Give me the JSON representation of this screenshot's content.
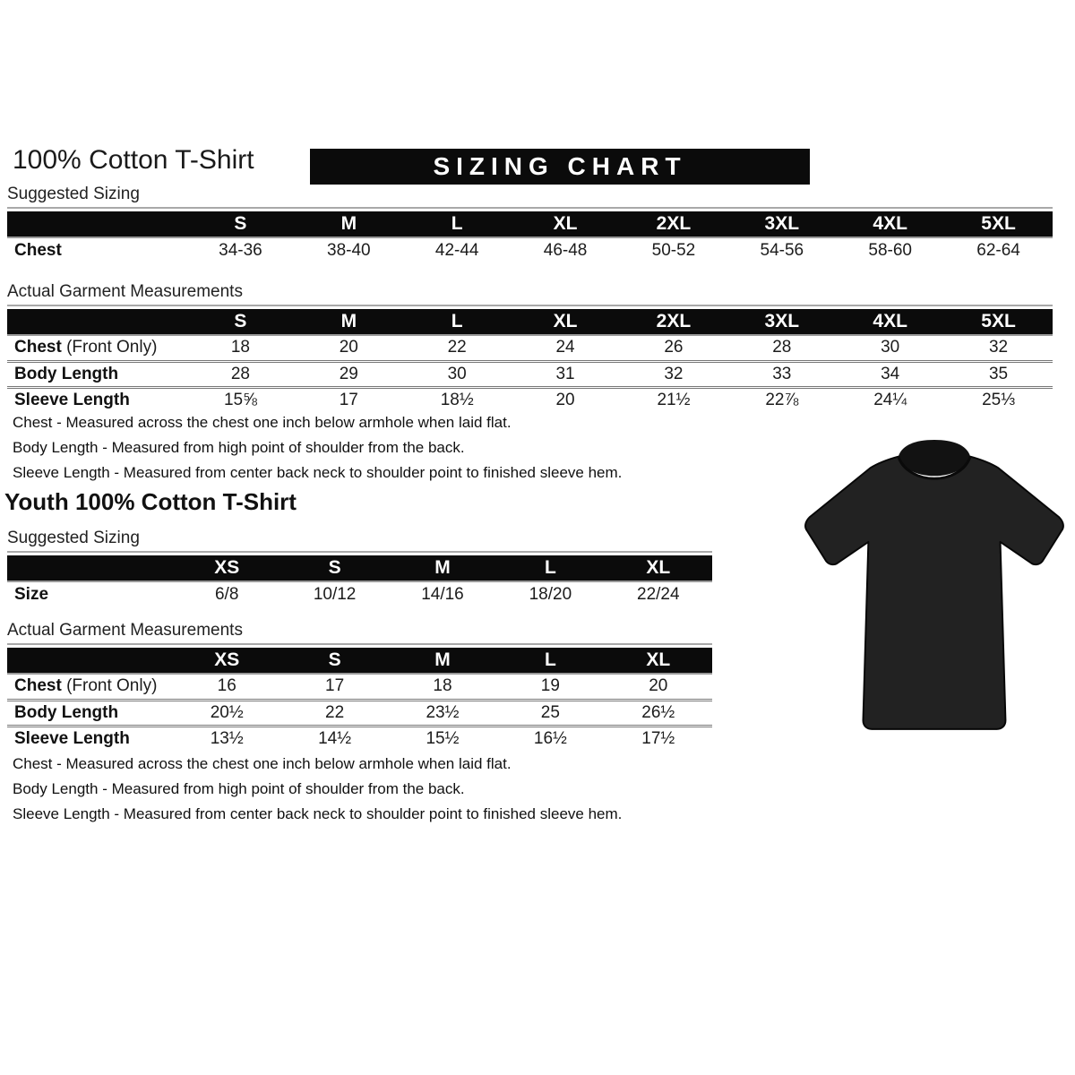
{
  "header": {
    "title": "100% Cotton T-Shirt",
    "banner": "SIZING CHART"
  },
  "adult": {
    "suggested_label": "Suggested Sizing",
    "suggested_table": {
      "columns": [
        "S",
        "M",
        "L",
        "XL",
        "2XL",
        "3XL",
        "4XL",
        "5XL"
      ],
      "rows": [
        {
          "label": "Chest",
          "suffix": "",
          "values": [
            "34-36",
            "38-40",
            "42-44",
            "46-48",
            "50-52",
            "54-56",
            "58-60",
            "62-64"
          ]
        }
      ]
    },
    "actual_label": "Actual Garment Measurements",
    "actual_table": {
      "columns": [
        "S",
        "M",
        "L",
        "XL",
        "2XL",
        "3XL",
        "4XL",
        "5XL"
      ],
      "rows": [
        {
          "label": "Chest",
          "suffix": " (Front Only)",
          "values": [
            "18",
            "20",
            "22",
            "24",
            "26",
            "28",
            "30",
            "32"
          ]
        },
        {
          "label": "Body Length",
          "suffix": "",
          "values": [
            "28",
            "29",
            "30",
            "31",
            "32",
            "33",
            "34",
            "35"
          ]
        },
        {
          "label": "Sleeve Length",
          "suffix": "",
          "values": [
            "15⅝",
            "17",
            "18½",
            "20",
            "21½",
            "22⅞",
            "24¼",
            "25⅓"
          ]
        }
      ]
    },
    "notes": [
      "Chest - Measured across the chest one inch below armhole when laid flat.",
      "Body Length - Measured from high point of shoulder from the back.",
      "Sleeve Length - Measured from center back neck to shoulder point to finished sleeve hem."
    ]
  },
  "youth": {
    "title": "Youth 100% Cotton T-Shirt",
    "suggested_label": "Suggested Sizing",
    "suggested_table": {
      "columns": [
        "XS",
        "S",
        "M",
        "L",
        "XL"
      ],
      "rows": [
        {
          "label": "Size",
          "suffix": "",
          "values": [
            "6/8",
            "10/12",
            "14/16",
            "18/20",
            "22/24"
          ]
        }
      ]
    },
    "actual_label": "Actual Garment Measurements",
    "actual_table": {
      "columns": [
        "XS",
        "S",
        "M",
        "L",
        "XL"
      ],
      "rows": [
        {
          "label": "Chest",
          "suffix": " (Front Only)",
          "values": [
            "16",
            "17",
            "18",
            "19",
            "20"
          ]
        },
        {
          "label": "Body Length",
          "suffix": "",
          "values": [
            "20½",
            "22",
            "23½",
            "25",
            "26½"
          ]
        },
        {
          "label": "Sleeve Length",
          "suffix": "",
          "values": [
            "13½",
            "14½",
            "15½",
            "16½",
            "17½"
          ]
        }
      ]
    },
    "notes": [
      "Chest - Measured across the chest one inch below armhole when laid flat.",
      "Body Length - Measured from high point of shoulder from the back.",
      "Sleeve Length - Measured from center back neck to shoulder point to finished sleeve hem."
    ]
  },
  "product_image": {
    "shirt_color": "#222222",
    "collar_color": "#121212",
    "outline_color": "#070707"
  },
  "colors": {
    "table_header_bg": "#0b0b0b",
    "banner_bg": "#0b0b0b",
    "row_rule": "#777777"
  }
}
